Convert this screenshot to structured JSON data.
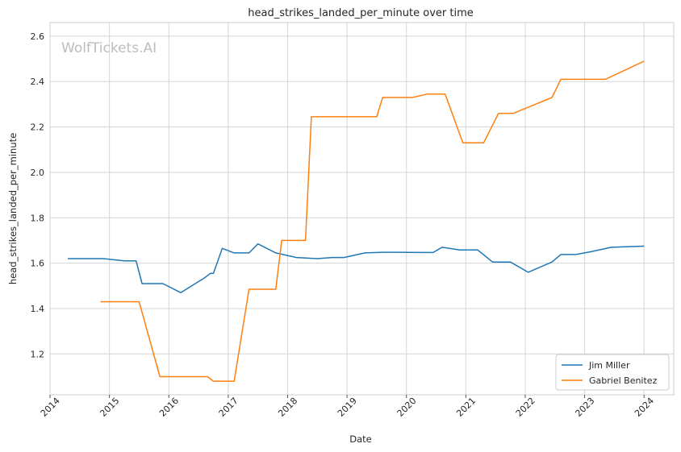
{
  "chart_data": {
    "type": "line",
    "title": "head_strikes_landed_per_minute over time",
    "xlabel": "Date",
    "ylabel": "head_strikes_landed_per_minute",
    "watermark": "WolfTickets.AI",
    "xlim": [
      2014.0,
      2024.5
    ],
    "ylim": [
      1.02,
      2.66
    ],
    "x_ticks": [
      2014,
      2015,
      2016,
      2017,
      2018,
      2019,
      2020,
      2021,
      2022,
      2023,
      2024
    ],
    "x_tick_labels": [
      "2014",
      "2015",
      "2016",
      "2017",
      "2018",
      "2019",
      "2020",
      "2021",
      "2022",
      "2023",
      "2024"
    ],
    "y_ticks": [
      1.2,
      1.4,
      1.6,
      1.8,
      2.0,
      2.2,
      2.4,
      2.6
    ],
    "y_tick_labels": [
      "1.2",
      "1.4",
      "1.6",
      "1.8",
      "2.0",
      "2.2",
      "2.4",
      "2.6"
    ],
    "grid": true,
    "legend_position": "bottom-right",
    "series": [
      {
        "name": "Jim Miller",
        "color": "#1f77b4",
        "x": [
          2014.3,
          2014.9,
          2015.25,
          2015.45,
          2015.55,
          2015.9,
          2016.2,
          2016.6,
          2016.7,
          2016.75,
          2016.9,
          2017.1,
          2017.35,
          2017.5,
          2017.8,
          2018.15,
          2018.5,
          2018.75,
          2018.95,
          2019.3,
          2019.6,
          2019.85,
          2020.3,
          2020.45,
          2020.6,
          2020.9,
          2021.2,
          2021.45,
          2021.75,
          2022.05,
          2022.45,
          2022.6,
          2022.85,
          2023.1,
          2023.45,
          2023.7,
          2024.0
        ],
        "y": [
          1.62,
          1.62,
          1.61,
          1.61,
          1.51,
          1.51,
          1.47,
          1.535,
          1.555,
          1.555,
          1.665,
          1.645,
          1.645,
          1.685,
          1.645,
          1.625,
          1.62,
          1.625,
          1.625,
          1.645,
          1.648,
          1.648,
          1.647,
          1.647,
          1.67,
          1.658,
          1.658,
          1.605,
          1.605,
          1.56,
          1.605,
          1.638,
          1.638,
          1.65,
          1.67,
          1.672,
          1.675
        ]
      },
      {
        "name": "Gabriel Benitez",
        "color": "#ff7f0e",
        "x": [
          2014.85,
          2015.5,
          2015.85,
          2016.65,
          2016.75,
          2017.1,
          2017.35,
          2017.8,
          2017.9,
          2018.3,
          2018.4,
          2019.5,
          2019.6,
          2020.1,
          2020.35,
          2020.65,
          2020.95,
          2021.3,
          2021.55,
          2021.8,
          2022.45,
          2022.6,
          2023.35,
          2024.0
        ],
        "y": [
          1.43,
          1.43,
          1.1,
          1.1,
          1.08,
          1.08,
          1.485,
          1.485,
          1.7,
          1.7,
          2.245,
          2.245,
          2.33,
          2.33,
          2.345,
          2.345,
          2.13,
          2.13,
          2.26,
          2.26,
          2.33,
          2.41,
          2.41,
          2.49
        ]
      }
    ]
  }
}
